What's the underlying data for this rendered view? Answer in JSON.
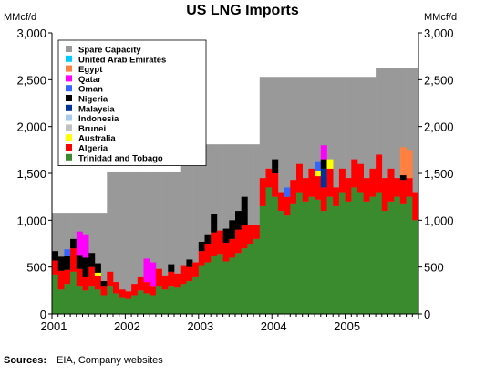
{
  "chart_data": {
    "type": "bar",
    "stacked": true,
    "title": "US LNG Imports",
    "ylabel_left": "MMcf/d",
    "ylabel_right": "MMcf/d",
    "ylim": [
      0,
      3000
    ],
    "yticks": [
      "0",
      "500",
      "1,000",
      "1,500",
      "2,000",
      "2,500",
      "3,000"
    ],
    "ytick_values": [
      0,
      500,
      1000,
      1500,
      2000,
      2500,
      3000
    ],
    "xticks": [
      "2001",
      "2002",
      "2003",
      "2004",
      "2005"
    ],
    "months": [
      "2001-01",
      "2001-02",
      "2001-03",
      "2001-04",
      "2001-05",
      "2001-06",
      "2001-07",
      "2001-08",
      "2001-09",
      "2001-10",
      "2001-11",
      "2001-12",
      "2002-01",
      "2002-02",
      "2002-03",
      "2002-04",
      "2002-05",
      "2002-06",
      "2002-07",
      "2002-08",
      "2002-09",
      "2002-10",
      "2002-11",
      "2002-12",
      "2003-01",
      "2003-02",
      "2003-03",
      "2003-04",
      "2003-05",
      "2003-06",
      "2003-07",
      "2003-08",
      "2003-09",
      "2003-10",
      "2003-11",
      "2003-12",
      "2004-01",
      "2004-02",
      "2004-03",
      "2004-04",
      "2004-05",
      "2004-06",
      "2004-07",
      "2004-08",
      "2004-09",
      "2004-10",
      "2004-11",
      "2004-12",
      "2005-01",
      "2005-02",
      "2005-03",
      "2005-04",
      "2005-05",
      "2005-06",
      "2005-07",
      "2005-08",
      "2005-09",
      "2005-10",
      "2005-11",
      "2005-12"
    ],
    "capacity": [
      1080,
      1080,
      1080,
      1080,
      1080,
      1080,
      1080,
      1080,
      1080,
      1520,
      1520,
      1520,
      1520,
      1520,
      1520,
      1520,
      1520,
      1520,
      1520,
      1520,
      1520,
      1810,
      1810,
      1810,
      1810,
      1810,
      1810,
      1810,
      1810,
      1810,
      1810,
      1810,
      1810,
      1810,
      2530,
      2530,
      2530,
      2530,
      2530,
      2530,
      2530,
      2530,
      2530,
      2530,
      2530,
      2530,
      2530,
      2530,
      2530,
      2530,
      2530,
      2530,
      2530,
      2630,
      2630,
      2630,
      2630,
      2630,
      2630,
      2630
    ],
    "series": [
      {
        "name": "Trinidad and Tobago",
        "color": "#3a8a2e",
        "values": [
          420,
          260,
          320,
          450,
          300,
          250,
          300,
          260,
          200,
          300,
          220,
          180,
          160,
          200,
          250,
          220,
          200,
          300,
          260,
          300,
          280,
          320,
          350,
          400,
          520,
          550,
          620,
          640,
          560,
          600,
          650,
          700,
          750,
          800,
          1150,
          1350,
          1250,
          1100,
          1050,
          1180,
          1300,
          1200,
          1250,
          1220,
          1100,
          1250,
          1150,
          1300,
          1200,
          1350,
          1300,
          1200,
          1250,
          1300,
          1100,
          1200,
          1250,
          1180,
          1250,
          1000
        ]
      },
      {
        "name": "Algeria",
        "color": "#ff0000",
        "values": [
          150,
          200,
          150,
          250,
          180,
          150,
          200,
          150,
          100,
          150,
          120,
          80,
          80,
          120,
          150,
          120,
          100,
          180,
          150,
          150,
          150,
          200,
          150,
          150,
          150,
          200,
          250,
          250,
          200,
          200,
          250,
          250,
          200,
          150,
          300,
          200,
          250,
          200,
          200,
          250,
          300,
          250,
          300,
          250,
          250,
          300,
          200,
          250,
          250,
          300,
          300,
          250,
          300,
          400,
          350,
          350,
          200,
          250,
          200,
          300
        ]
      },
      {
        "name": "Australia",
        "color": "#ffff00",
        "values": [
          0,
          0,
          0,
          0,
          0,
          0,
          0,
          30,
          0,
          0,
          0,
          0,
          0,
          0,
          0,
          0,
          0,
          0,
          0,
          0,
          0,
          0,
          0,
          0,
          0,
          0,
          0,
          0,
          0,
          0,
          0,
          0,
          0,
          0,
          0,
          0,
          0,
          0,
          0,
          0,
          0,
          0,
          0,
          60,
          0,
          100,
          0,
          0,
          0,
          0,
          0,
          0,
          0,
          0,
          0,
          0,
          0,
          0,
          0,
          0
        ]
      },
      {
        "name": "Brunei",
        "color": "#c0c0c0",
        "values": [
          0,
          0,
          0,
          0,
          0,
          0,
          0,
          0,
          0,
          0,
          0,
          0,
          0,
          0,
          0,
          0,
          0,
          0,
          0,
          0,
          0,
          0,
          0,
          0,
          0,
          0,
          0,
          0,
          0,
          0,
          0,
          0,
          0,
          0,
          0,
          0,
          0,
          0,
          0,
          0,
          0,
          0,
          0,
          0,
          0,
          0,
          0,
          0,
          0,
          0,
          0,
          0,
          0,
          0,
          0,
          0,
          0,
          0,
          0,
          0
        ]
      },
      {
        "name": "Indonesia",
        "color": "#a6caf0",
        "values": [
          0,
          0,
          0,
          0,
          0,
          0,
          0,
          0,
          0,
          0,
          0,
          0,
          0,
          0,
          0,
          0,
          0,
          0,
          0,
          0,
          0,
          0,
          0,
          0,
          0,
          0,
          0,
          0,
          0,
          0,
          0,
          0,
          0,
          0,
          0,
          0,
          0,
          0,
          0,
          0,
          0,
          0,
          0,
          0,
          0,
          0,
          0,
          0,
          0,
          0,
          0,
          0,
          0,
          0,
          0,
          0,
          0,
          0,
          0,
          0
        ]
      },
      {
        "name": "Malaysia",
        "color": "#003399",
        "values": [
          0,
          0,
          0,
          0,
          0,
          0,
          0,
          0,
          0,
          0,
          0,
          0,
          0,
          0,
          0,
          0,
          0,
          0,
          0,
          0,
          0,
          0,
          0,
          0,
          0,
          0,
          0,
          0,
          0,
          0,
          0,
          0,
          0,
          0,
          0,
          0,
          0,
          0,
          0,
          0,
          0,
          0,
          0,
          0,
          200,
          0,
          0,
          0,
          0,
          0,
          0,
          0,
          0,
          0,
          0,
          0,
          0,
          0,
          0,
          0
        ]
      },
      {
        "name": "Nigeria",
        "color": "#000000",
        "values": [
          100,
          150,
          150,
          100,
          150,
          200,
          150,
          100,
          50,
          0,
          0,
          0,
          0,
          0,
          0,
          0,
          0,
          0,
          0,
          80,
          0,
          0,
          80,
          0,
          100,
          100,
          200,
          0,
          150,
          200,
          200,
          300,
          0,
          0,
          0,
          0,
          150,
          0,
          0,
          0,
          0,
          0,
          0,
          0,
          100,
          0,
          0,
          0,
          0,
          0,
          0,
          0,
          0,
          0,
          0,
          0,
          0,
          50,
          0,
          0
        ]
      },
      {
        "name": "Oman",
        "color": "#3366ff",
        "values": [
          0,
          0,
          70,
          0,
          0,
          0,
          0,
          0,
          0,
          0,
          0,
          0,
          0,
          0,
          0,
          0,
          0,
          0,
          0,
          0,
          0,
          0,
          0,
          0,
          0,
          0,
          0,
          0,
          0,
          0,
          0,
          0,
          0,
          0,
          0,
          0,
          0,
          0,
          100,
          0,
          0,
          0,
          0,
          100,
          0,
          0,
          0,
          0,
          0,
          0,
          0,
          0,
          0,
          0,
          0,
          0,
          0,
          0,
          0,
          0
        ]
      },
      {
        "name": "Qatar",
        "color": "#ff00ff",
        "values": [
          0,
          0,
          0,
          0,
          250,
          250,
          0,
          0,
          0,
          0,
          0,
          0,
          0,
          0,
          0,
          250,
          250,
          0,
          0,
          0,
          0,
          0,
          0,
          0,
          0,
          0,
          0,
          0,
          0,
          0,
          0,
          0,
          0,
          0,
          0,
          0,
          0,
          0,
          0,
          0,
          0,
          0,
          0,
          0,
          150,
          0,
          0,
          0,
          0,
          0,
          0,
          0,
          0,
          0,
          0,
          0,
          0,
          0,
          0,
          0
        ]
      },
      {
        "name": "United Arab Emirates",
        "color": "#00ccff",
        "values": [
          0,
          0,
          0,
          0,
          0,
          0,
          0,
          0,
          0,
          0,
          0,
          0,
          0,
          0,
          0,
          0,
          0,
          0,
          0,
          0,
          0,
          0,
          0,
          0,
          0,
          0,
          0,
          0,
          0,
          0,
          0,
          0,
          0,
          0,
          0,
          0,
          0,
          0,
          0,
          0,
          0,
          0,
          0,
          0,
          0,
          0,
          0,
          0,
          0,
          0,
          0,
          0,
          0,
          0,
          0,
          0,
          0,
          0,
          0,
          0
        ]
      },
      {
        "name": "Egypt",
        "color": "#ff8040",
        "values": [
          0,
          0,
          0,
          0,
          0,
          0,
          0,
          0,
          0,
          0,
          0,
          0,
          0,
          0,
          0,
          0,
          0,
          0,
          0,
          0,
          0,
          0,
          0,
          0,
          0,
          0,
          0,
          0,
          0,
          0,
          0,
          0,
          0,
          0,
          0,
          0,
          0,
          0,
          0,
          0,
          0,
          0,
          0,
          0,
          0,
          0,
          0,
          0,
          0,
          0,
          0,
          0,
          0,
          0,
          0,
          0,
          0,
          300,
          300,
          0
        ]
      }
    ],
    "legend": [
      {
        "name": "Spare Capacity",
        "color": "#999999"
      },
      {
        "name": "United Arab Emirates",
        "color": "#00ccff"
      },
      {
        "name": "Egypt",
        "color": "#ff8040"
      },
      {
        "name": "Qatar",
        "color": "#ff00ff"
      },
      {
        "name": "Oman",
        "color": "#3366ff"
      },
      {
        "name": "Nigeria",
        "color": "#000000"
      },
      {
        "name": "Malaysia",
        "color": "#003399"
      },
      {
        "name": "Indonesia",
        "color": "#a6caf0"
      },
      {
        "name": "Brunei",
        "color": "#c0c0c0"
      },
      {
        "name": "Australia",
        "color": "#ffff00"
      },
      {
        "name": "Algeria",
        "color": "#ff0000"
      },
      {
        "name": "Trinidad and Tobago",
        "color": "#3a8a2e"
      }
    ],
    "legend_position": "top-left",
    "grid": false
  },
  "footer": {
    "sources_label": "Sources:",
    "sources_text": "EIA, Company websites"
  }
}
